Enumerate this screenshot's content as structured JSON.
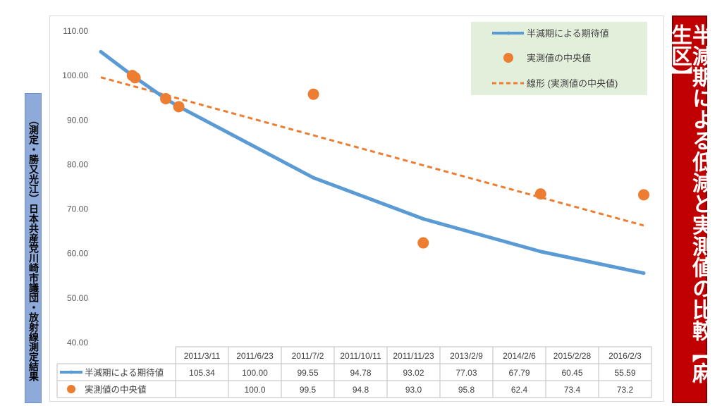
{
  "side_label": "（測定・勝又光江）日本共産党川崎市議団・放射線測定結果",
  "banner_title": "半減期による低減と実測値の比較【麻生区】",
  "chart_data": {
    "type": "line",
    "categories": [
      "2011/3/11",
      "2011/6/23",
      "2011/7/2",
      "2011/10/11",
      "2011/11/23",
      "2013/2/9",
      "2014/2/6",
      "2015/2/28",
      "2016/2/3"
    ],
    "series": [
      {
        "name": "半減期による期待値",
        "type": "line",
        "color": "#5b9bd5",
        "values": [
          105.34,
          100.0,
          99.55,
          94.78,
          93.02,
          77.03,
          67.79,
          60.45,
          55.59
        ],
        "table_values": [
          "105.34",
          "100.00",
          "99.55",
          "94.78",
          "93.02",
          "77.03",
          "67.79",
          "60.45",
          "55.59"
        ]
      },
      {
        "name": "実測値の中央値",
        "type": "scatter",
        "color": "#ed7d31",
        "values": [
          null,
          100.0,
          99.5,
          94.8,
          93.0,
          95.8,
          62.4,
          73.4,
          73.2
        ],
        "table_values": [
          "",
          "100.0",
          "99.5",
          "94.8",
          "93.0",
          "95.8",
          "62.4",
          "73.4",
          "73.2"
        ]
      }
    ],
    "trendline": {
      "name": "線形 (実測値の中央値)",
      "color": "#ed7d31",
      "style": "dashed",
      "start": 99.6,
      "end": 66.3
    },
    "y_ticks": [
      "110.00",
      "100.00",
      "90.00",
      "80.00",
      "70.00",
      "60.00",
      "50.00",
      "40.00"
    ],
    "ylim": [
      40,
      110
    ],
    "x_axis": "date",
    "grid": false,
    "legend_position": "top-right",
    "legend_background": "#e2efda",
    "data_table": true
  }
}
